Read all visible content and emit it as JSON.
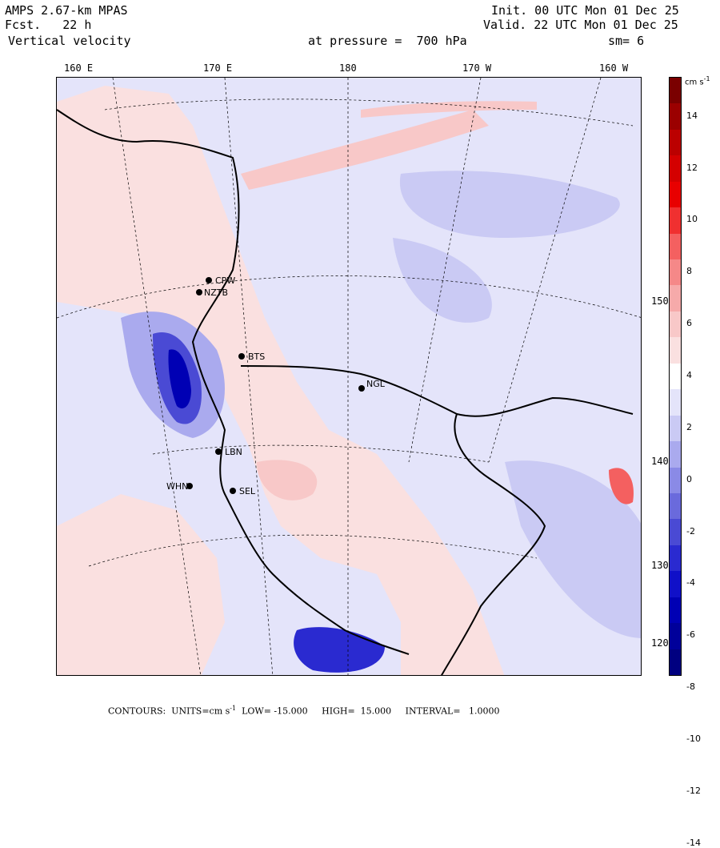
{
  "header": {
    "model": "AMPS 2.67-km MPAS",
    "fcst": "Fcst.   22 h",
    "field": "Vertical velocity",
    "init": "Init. 00 UTC Mon 01 Dec 25",
    "valid": "Valid. 22 UTC Mon 01 Dec 25",
    "level": "at pressure =  700 hPa",
    "smooth": "sm= 6"
  },
  "lon_labels": [
    "160 E",
    "170 E",
    "180",
    "170 W",
    "160 W"
  ],
  "lat_labels": [
    "150 W",
    "140 W",
    "130 W",
    "120 W"
  ],
  "stations": [
    {
      "id": "CPW"
    },
    {
      "id": "NZTB"
    },
    {
      "id": "BTS"
    },
    {
      "id": "NGL"
    },
    {
      "id": "LBN"
    },
    {
      "id": "WHN"
    },
    {
      "id": "SEL"
    }
  ],
  "colorbar": {
    "units": "cm s",
    "units_exp": "-1",
    "ticks": [
      "14",
      "12",
      "10",
      "8",
      "6",
      "4",
      "2",
      "0",
      "-2",
      "-4",
      "-6",
      "-8",
      "-10",
      "-12",
      "-14"
    ],
    "colors": [
      "#7a0000",
      "#9b0000",
      "#bb0000",
      "#d40000",
      "#e80000",
      "#f03030",
      "#f46060",
      "#f58888",
      "#f6aaaa",
      "#f8c8c8",
      "#fae0e0",
      "#ffffff",
      "#e4e4fa",
      "#cacaf4",
      "#aaaaee",
      "#8a8ae6",
      "#6a6adc",
      "#4a4ad4",
      "#2a2ad0",
      "#1010c8",
      "#0000b4",
      "#00009a",
      "#000080"
    ]
  },
  "footer": {
    "contours": "CONTOURS:",
    "units_label": "UNITS=cm s",
    "units_exp": "-1",
    "low": "LOW= -15.000",
    "high": "HIGH=  15.000",
    "interval": "INTERVAL=   1.0000"
  }
}
